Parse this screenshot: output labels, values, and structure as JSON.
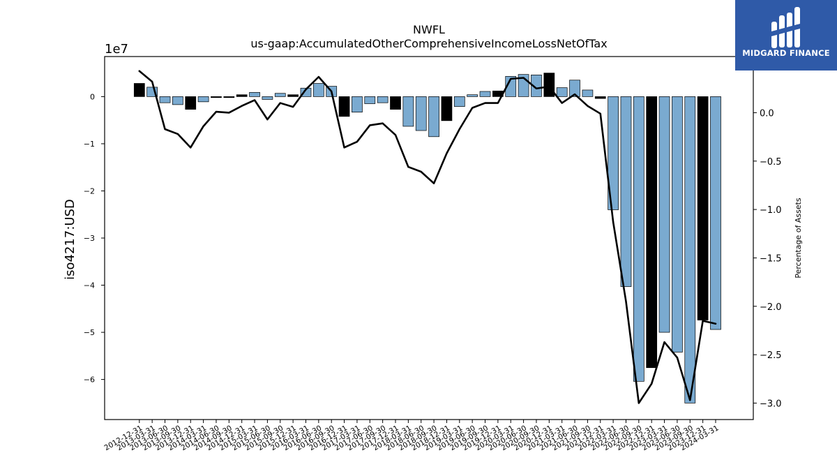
{
  "chart_data": {
    "type": "bar",
    "title": "NWFL",
    "subtitle": "us-gaap:AccumulatedOtherComprehensiveIncomeLossNetOfTax",
    "ylabel": "iso4217:USD",
    "y_offset_label": "1e7",
    "y2label": "Percentage of Assets",
    "ylim": [
      -68500000,
      8500000
    ],
    "y2lim": [
      -3.17,
      0.58
    ],
    "y_ticks": [
      0,
      -1,
      -2,
      -3,
      -4,
      -5,
      -6
    ],
    "y_tick_labels": [
      "0",
      "−1",
      "−2",
      "−3",
      "−4",
      "−5",
      "−6"
    ],
    "y2_ticks": [
      0.0,
      -0.5,
      -1.0,
      -1.5,
      -2.0,
      -2.5,
      -3.0
    ],
    "y2_tick_labels": [
      "0.0",
      "−0.5",
      "−1.0",
      "−1.5",
      "−2.0",
      "−2.5",
      "−3.0"
    ],
    "categories": [
      "2012-12-31",
      "2013-03-31",
      "2013-06-30",
      "2013-09-30",
      "2013-12-31",
      "2014-03-31",
      "2014-06-30",
      "2014-09-30",
      "2014-12-31",
      "2015-03-31",
      "2015-06-30",
      "2015-09-30",
      "2015-12-31",
      "2016-03-31",
      "2016-06-30",
      "2016-09-30",
      "2016-12-31",
      "2017-03-31",
      "2017-06-30",
      "2017-09-30",
      "2017-12-31",
      "2018-03-31",
      "2018-06-30",
      "2018-09-30",
      "2018-12-31",
      "2019-03-31",
      "2019-06-30",
      "2019-09-30",
      "2019-12-31",
      "2020-03-31",
      "2020-06-30",
      "2020-09-30",
      "2020-12-31",
      "2021-03-31",
      "2021-06-30",
      "2021-09-30",
      "2021-12-31",
      "2022-03-31",
      "2022-06-30",
      "2022-09-30",
      "2022-12-31",
      "2023-03-31",
      "2023-06-30",
      "2023-09-30",
      "2023-12-31",
      "2024-03-31"
    ],
    "series": [
      {
        "type": "bar",
        "values": [
          2800000,
          2000000,
          -1300000,
          -1700000,
          -2700000,
          -1100000,
          -200000,
          -200000,
          400000,
          900000,
          -600000,
          700000,
          400000,
          1800000,
          2800000,
          2200000,
          -4200000,
          -3300000,
          -1500000,
          -1300000,
          -2700000,
          -6300000,
          -7200000,
          -8500000,
          -5100000,
          -2100000,
          400000,
          1100000,
          1200000,
          4300000,
          4700000,
          4600000,
          5000000,
          1900000,
          3500000,
          1400000,
          -400000,
          -24000000,
          -40300000,
          -60400000,
          -57500000,
          -50000000,
          -54200000,
          -65000000,
          -47400000,
          -49400000
        ],
        "colors": [
          "#000000",
          "#7aaad0",
          "#7aaad0",
          "#7aaad0",
          "#000000",
          "#7aaad0",
          "#000000",
          "#000000",
          "#000000",
          "#7aaad0",
          "#7aaad0",
          "#7aaad0",
          "#000000",
          "#7aaad0",
          "#7aaad0",
          "#7aaad0",
          "#000000",
          "#7aaad0",
          "#7aaad0",
          "#7aaad0",
          "#000000",
          "#7aaad0",
          "#7aaad0",
          "#7aaad0",
          "#000000",
          "#7aaad0",
          "#7aaad0",
          "#7aaad0",
          "#000000",
          "#7aaad0",
          "#7aaad0",
          "#7aaad0",
          "#000000",
          "#7aaad0",
          "#7aaad0",
          "#7aaad0",
          "#000000",
          "#7aaad0",
          "#7aaad0",
          "#7aaad0",
          "#000000",
          "#7aaad0",
          "#7aaad0",
          "#7aaad0",
          "#000000",
          "#7aaad0"
        ]
      },
      {
        "type": "line",
        "axis": "right",
        "color": "#000000",
        "values": [
          0.43,
          0.32,
          -0.17,
          -0.22,
          -0.36,
          -0.14,
          0.01,
          0.0,
          0.07,
          0.13,
          -0.07,
          0.1,
          0.06,
          0.24,
          0.37,
          0.22,
          -0.36,
          -0.3,
          -0.13,
          -0.11,
          -0.23,
          -0.56,
          -0.61,
          -0.73,
          -0.42,
          -0.17,
          0.05,
          0.1,
          0.1,
          0.35,
          0.36,
          0.25,
          0.27,
          0.1,
          0.19,
          0.07,
          -0.01,
          -1.13,
          -1.95,
          -3.0,
          -2.8,
          -2.37,
          -2.53,
          -2.97,
          -2.15,
          -2.18
        ]
      }
    ],
    "legend": "none",
    "grid": false
  },
  "logo": {
    "text": "MIDGARD FINANCE",
    "background": "#2f5aa8"
  }
}
